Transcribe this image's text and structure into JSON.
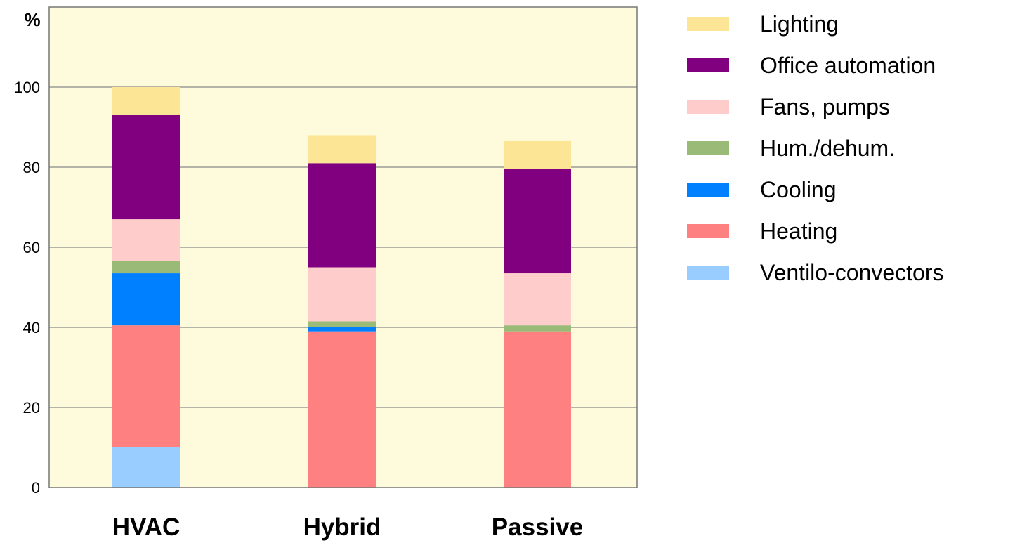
{
  "chart_data": {
    "type": "bar",
    "stacked": true,
    "y_unit_label": "%",
    "categories": [
      "HVAC",
      "Hybrid",
      "Passive"
    ],
    "ylim": [
      0,
      120
    ],
    "yticks": [
      0,
      20,
      40,
      60,
      80,
      100
    ],
    "grid": true,
    "legend_position": "right",
    "plot_background": "#fefbdc",
    "series": [
      {
        "name": "Ventilo-convectors",
        "color": "#99ccff",
        "values": [
          10,
          0,
          0
        ]
      },
      {
        "name": "Heating",
        "color": "#ff8080",
        "values": [
          30.5,
          39,
          39
        ]
      },
      {
        "name": "Cooling",
        "color": "#0080ff",
        "values": [
          13,
          1,
          0
        ]
      },
      {
        "name": "Hum./dehum.",
        "color": "#99bb77",
        "values": [
          3,
          1.5,
          1.5
        ]
      },
      {
        "name": "Fans, pumps",
        "color": "#ffcccc",
        "values": [
          10.5,
          13.5,
          13
        ]
      },
      {
        "name": "Office automation",
        "color": "#800080",
        "values": [
          26,
          26,
          26
        ]
      },
      {
        "name": "Lighting",
        "color": "#fce696",
        "values": [
          7,
          7,
          7
        ]
      }
    ]
  }
}
